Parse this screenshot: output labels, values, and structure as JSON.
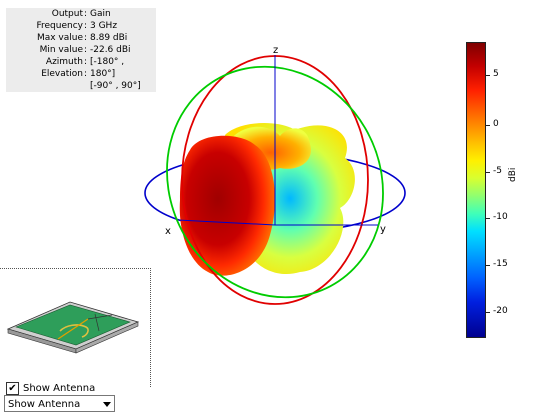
{
  "info": [
    {
      "key": "Output",
      "value": "Gain"
    },
    {
      "key": "Frequency",
      "value": "3 GHz"
    },
    {
      "key": "Max value",
      "value": "8.89 dBi"
    },
    {
      "key": "Min value",
      "value": "-22.6 dBi"
    },
    {
      "key": "Azimuth",
      "value": "[-180° ,"
    },
    {
      "key": "Elevation",
      "value": "180°]"
    },
    {
      "key": "",
      "value": "[-90° , 90°]"
    }
  ],
  "axes": {
    "x": "x",
    "y": "y",
    "z": "z"
  },
  "colorbar": {
    "unit": "dBi",
    "ticks": [
      "5",
      "0",
      "-5",
      "-10",
      "-15",
      "-20"
    ]
  },
  "controls": {
    "show_antenna_checkbox": "Show Antenna",
    "show_antenna_checked": true,
    "display_dropdown": "Show Antenna"
  },
  "colors": {
    "elevation_ring_red": "#e00000",
    "elevation_ring_green": "#00cc00",
    "azimuth_ring_blue": "#0000cc",
    "max_gain": "#7f0000",
    "min_gain": "#00008f"
  }
}
